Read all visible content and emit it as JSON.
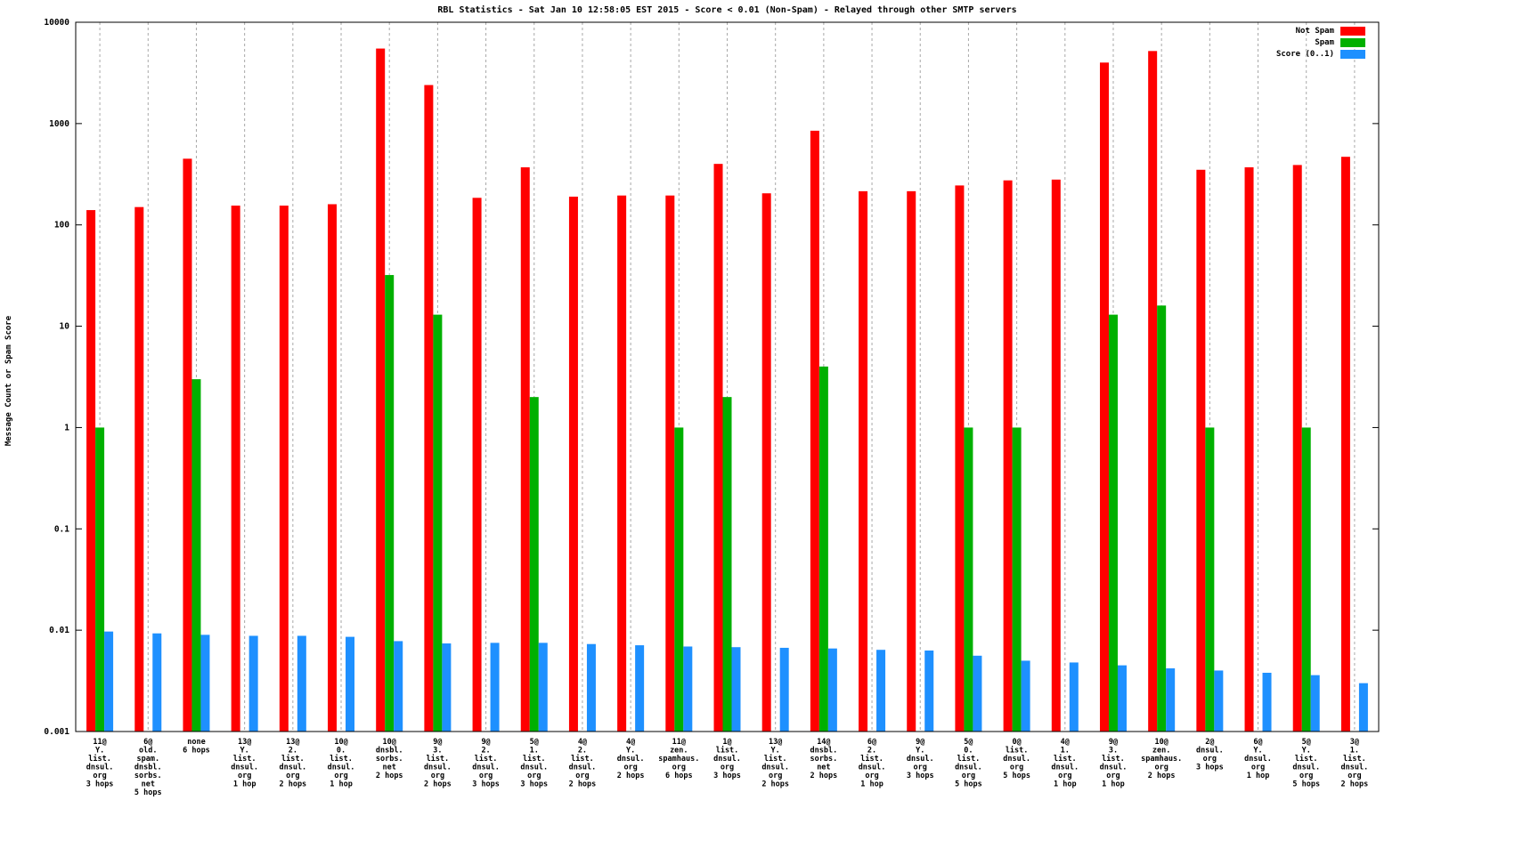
{
  "chart_data": {
    "type": "bar",
    "title": "RBL Statistics - Sat Jan 10 12:58:05 EST 2015 - Score < 0.01 (Non-Spam) - Relayed through other SMTP servers",
    "ylabel": "Message Count or Spam Score",
    "xlabel": "",
    "log_y": true,
    "ylim": [
      0.001,
      10000
    ],
    "ytick_labels": [
      "0.001",
      "0.01",
      "0.1",
      "1",
      "10",
      "100",
      "1000",
      "10000"
    ],
    "grid": "vertical-dashed",
    "legend_position": "top-right",
    "categories": [
      [
        "11@",
        "Y.",
        "list.",
        "dnsul.",
        "org",
        "3 hops"
      ],
      [
        "6@",
        "old.",
        "spam.",
        "dnsbl.",
        "sorbs.",
        "net",
        "5 hops"
      ],
      [
        "none",
        "6 hops"
      ],
      [
        "13@",
        "Y.",
        "list.",
        "dnsul.",
        "org",
        "1 hop"
      ],
      [
        "13@",
        "2.",
        "list.",
        "dnsul.",
        "org",
        "2 hops"
      ],
      [
        "10@",
        "0.",
        "list.",
        "dnsul.",
        "org",
        "1 hop"
      ],
      [
        "10@",
        "dnsbl.",
        "sorbs.",
        "net",
        "2 hops"
      ],
      [
        "9@",
        "3.",
        "list.",
        "dnsul.",
        "org",
        "2 hops"
      ],
      [
        "9@",
        "2.",
        "list.",
        "dnsul.",
        "org",
        "3 hops"
      ],
      [
        "5@",
        "1.",
        "list.",
        "dnsul.",
        "org",
        "3 hops"
      ],
      [
        "4@",
        "2.",
        "list.",
        "dnsul.",
        "org",
        "2 hops"
      ],
      [
        "4@",
        "Y.",
        "dnsul.",
        "org",
        "2 hops"
      ],
      [
        "11@",
        "zen.",
        "spamhaus.",
        "org",
        "6 hops"
      ],
      [
        "1@",
        "list.",
        "dnsul.",
        "org",
        "3 hops"
      ],
      [
        "13@",
        "Y.",
        "list.",
        "dnsul.",
        "org",
        "2 hops"
      ],
      [
        "14@",
        "dnsbl.",
        "sorbs.",
        "net",
        "2 hops"
      ],
      [
        "6@",
        "2.",
        "list.",
        "dnsul.",
        "org",
        "1 hop"
      ],
      [
        "9@",
        "Y.",
        "dnsul.",
        "org",
        "3 hops"
      ],
      [
        "5@",
        "0.",
        "list.",
        "dnsul.",
        "org",
        "5 hops"
      ],
      [
        "0@",
        "list.",
        "dnsul.",
        "org",
        "5 hops"
      ],
      [
        "4@",
        "1.",
        "list.",
        "dnsul.",
        "org",
        "1 hop"
      ],
      [
        "9@",
        "3.",
        "list.",
        "dnsul.",
        "org",
        "1 hop"
      ],
      [
        "10@",
        "zen.",
        "spamhaus.",
        "org",
        "2 hops"
      ],
      [
        "2@",
        "dnsul.",
        "org",
        "3 hops"
      ],
      [
        "6@",
        "Y.",
        "dnsul.",
        "org",
        "1 hop"
      ],
      [
        "5@",
        "Y.",
        "list.",
        "dnsul.",
        "org",
        "5 hops"
      ],
      [
        "3@",
        "1.",
        "list.",
        "dnsul.",
        "org",
        "2 hops"
      ]
    ],
    "series": [
      {
        "name": "Not Spam",
        "color": "#ff0000",
        "values": [
          140,
          150,
          450,
          155,
          155,
          160,
          5500,
          2400,
          185,
          370,
          190,
          195,
          195,
          400,
          205,
          850,
          215,
          215,
          245,
          275,
          280,
          4000,
          5200,
          350,
          370,
          390,
          470
        ]
      },
      {
        "name": "Spam",
        "color": "#00b000",
        "values": [
          1,
          null,
          3,
          null,
          null,
          null,
          32,
          13,
          null,
          2,
          null,
          null,
          1,
          2,
          null,
          4,
          null,
          null,
          1,
          1,
          null,
          13,
          16,
          1,
          null,
          1,
          null
        ]
      },
      {
        "name": "Score (0..1)",
        "color": "#1e90ff",
        "values": [
          0.0097,
          0.0093,
          0.009,
          0.0088,
          0.0088,
          0.0086,
          0.0078,
          0.0074,
          0.0075,
          0.0075,
          0.0073,
          0.0071,
          0.0069,
          0.0068,
          0.0067,
          0.0066,
          0.0064,
          0.0063,
          0.0056,
          0.005,
          0.0048,
          0.0045,
          0.0042,
          0.004,
          0.0038,
          0.0036,
          0.003
        ]
      }
    ]
  }
}
